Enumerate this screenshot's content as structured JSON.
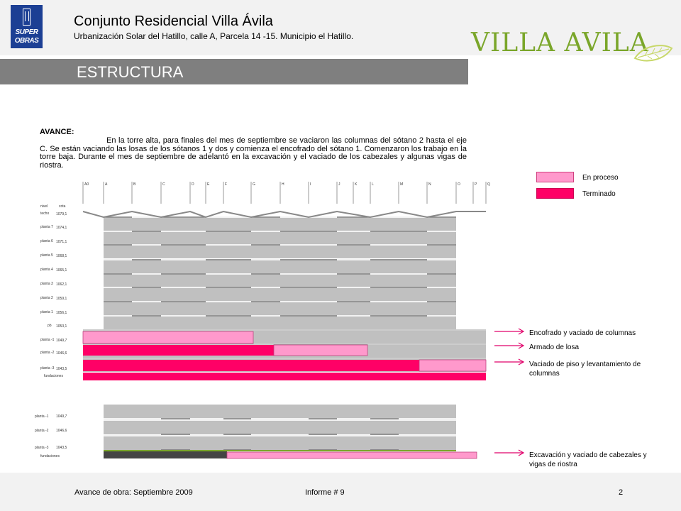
{
  "header": {
    "logo_line1": "SUPER",
    "logo_line2": "OBRAS",
    "title": "Conjunto Residencial Villa Ávila",
    "subtitle": "Urbanización Solar del Hatillo, calle A, Parcela 14 -15. Municipio el Hatillo.",
    "brand": "VILLA AVILA"
  },
  "section": {
    "title": "ESTRUCTURA"
  },
  "avance": {
    "label": "AVANCE:",
    "text": "En la torre alta, para finales del mes de septiembre se vaciaron las columnas del sótano 2 hasta el eje C. Se están vaciando las losas de los sótanos 1 y dos y comienza el encofrado del sótano 1. Comenzaron los trabajo en la torre baja. Durante el mes de septiembre de adelantó en la excavación y el vaciado de los cabezales y algunas vigas de riostra."
  },
  "legend": {
    "in_process": "En proceso",
    "finished": "Terminado",
    "in_process_color": "#ff99cc",
    "finished_color": "#ff0066"
  },
  "callouts": {
    "columns": "Encofrado y vaciado de columnas",
    "slab": "Armado de losa",
    "floor": "Vaciado de piso y levantamiento de columnas",
    "excavation": "Excavación y vaciado de cabezales y vigas de riostra"
  },
  "tower_high": {
    "axes": [
      "A0",
      "A",
      "B",
      "C",
      "D",
      "E",
      "F",
      "G",
      "H",
      "I",
      "J",
      "K",
      "L",
      "M",
      "N",
      "O",
      "P",
      "Q"
    ],
    "header_level": "nivel",
    "header_elevation": "cota",
    "levels": [
      {
        "name": "techo",
        "elevation": "1079,1"
      },
      {
        "name": "planta 7",
        "elevation": "1074,1"
      },
      {
        "name": "planta 6",
        "elevation": "1071,1"
      },
      {
        "name": "planta 5",
        "elevation": "1068,1"
      },
      {
        "name": "planta 4",
        "elevation": "1065,1"
      },
      {
        "name": "planta 3",
        "elevation": "1062,1"
      },
      {
        "name": "planta 2",
        "elevation": "1059,1"
      },
      {
        "name": "planta 1",
        "elevation": "1056,1"
      },
      {
        "name": "pb",
        "elevation": "1053,1"
      },
      {
        "name": "planta -1",
        "elevation": "1049,7"
      },
      {
        "name": "planta -2",
        "elevation": "1046,6"
      },
      {
        "name": "planta -3",
        "elevation": "1043,5"
      }
    ],
    "foundations": "fundaciones"
  },
  "tower_low": {
    "levels": [
      {
        "name": "planta -1",
        "elevation": "1049,7"
      },
      {
        "name": "planta -2",
        "elevation": "1046,6"
      },
      {
        "name": "planta -3",
        "elevation": "1043,5"
      }
    ],
    "foundations": "fundaciones"
  },
  "footer": {
    "left": "Avance de obra: Septiembre 2009",
    "center": "Informe # 9",
    "page": "2"
  }
}
